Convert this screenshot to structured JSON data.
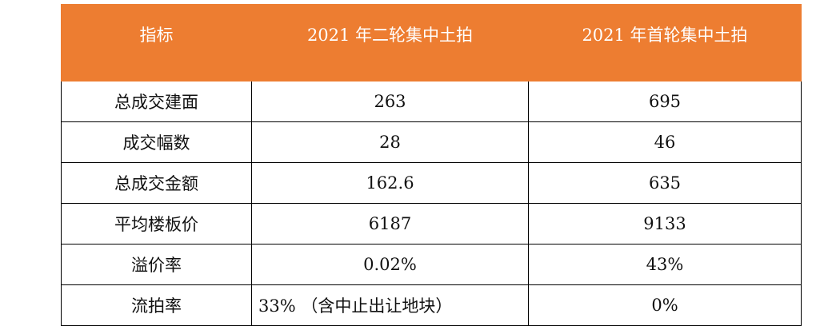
{
  "table": {
    "header": [
      "指标",
      "2021 年二轮集中土拍",
      "2021 年首轮集中土拍"
    ],
    "rows": [
      [
        "总成交建面",
        "263",
        "695"
      ],
      [
        "成交幅数",
        "28",
        "46"
      ],
      [
        "总成交金额",
        "162.6",
        "635"
      ],
      [
        "平均楼板价",
        "6187",
        "9133"
      ],
      [
        "溢价率",
        "0.02%",
        "43%"
      ],
      [
        "流拍率",
        "33% （含中止出让地块）",
        "0%"
      ]
    ]
  }
}
